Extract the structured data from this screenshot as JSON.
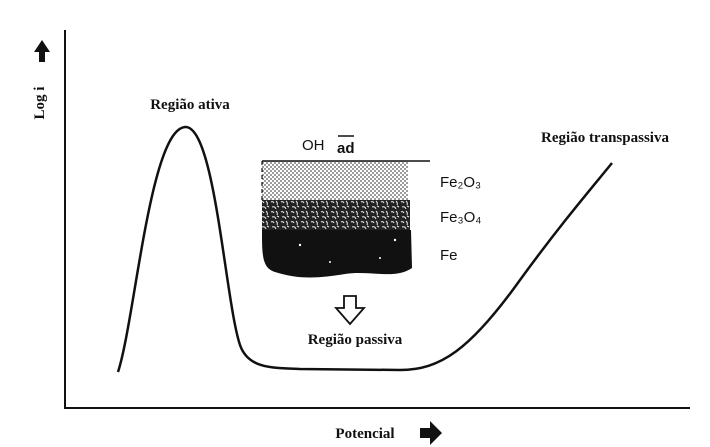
{
  "axes": {
    "y_label": "Log i",
    "x_label": "Potencial"
  },
  "regions": {
    "active": "Região ativa",
    "transpassive": "Região transpassiva",
    "passive": "Região passiva"
  },
  "film": {
    "adsorbed": "OH",
    "adsorbed_sub": "ad",
    "layers": [
      "Fe₂O₃",
      "Fe₃O₄",
      "Fe"
    ]
  }
}
